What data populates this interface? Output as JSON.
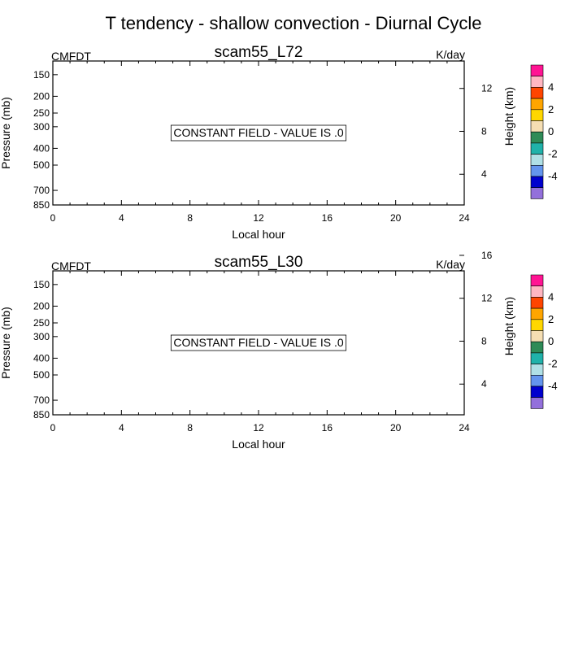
{
  "figure": {
    "title": "T tendency - shallow convection - Diurnal Cycle"
  },
  "chart_data": [
    {
      "type": "heatmap",
      "title": "scam55_L72",
      "left_label": "CMFDT",
      "right_label": "K/day",
      "xlabel": "Local hour",
      "ylabel": "Pressure (mb)",
      "y2label": "Height (km)",
      "xlim": [
        0,
        24
      ],
      "xticks": [
        0,
        4,
        8,
        12,
        16,
        20,
        24
      ],
      "yticks": [
        150,
        200,
        250,
        300,
        400,
        500,
        700,
        850
      ],
      "y2ticks": [
        4,
        8,
        12
      ],
      "message": "CONSTANT FIELD - VALUE IS .0",
      "colorbar": {
        "labels": [
          "4",
          "2",
          "0",
          "-2",
          "-4"
        ],
        "colors": [
          "#ff1493",
          "#ffb6c1",
          "#ff4500",
          "#ffa500",
          "#ffd700",
          "#f5deb3",
          "#2e8b57",
          "#20b2aa",
          "#b0e0e6",
          "#6495ed",
          "#0000cd",
          "#9370db"
        ]
      }
    },
    {
      "type": "heatmap",
      "title": "scam55_L30",
      "left_label": "CMFDT",
      "right_label": "K/day",
      "xlabel": "Local hour",
      "ylabel": "Pressure (mb)",
      "y2label": "Height (km)",
      "xlim": [
        0,
        24
      ],
      "xticks": [
        0,
        4,
        8,
        12,
        16,
        20,
        24
      ],
      "yticks": [
        150,
        200,
        250,
        300,
        400,
        500,
        700,
        850
      ],
      "y2ticks": [
        4,
        8,
        12,
        16
      ],
      "message": "CONSTANT FIELD - VALUE IS .0",
      "colorbar": {
        "labels": [
          "4",
          "2",
          "0",
          "-2",
          "-4"
        ],
        "colors": [
          "#ff1493",
          "#ffb6c1",
          "#ff4500",
          "#ffa500",
          "#ffd700",
          "#f5deb3",
          "#2e8b57",
          "#20b2aa",
          "#b0e0e6",
          "#6495ed",
          "#0000cd",
          "#9370db"
        ]
      }
    }
  ]
}
